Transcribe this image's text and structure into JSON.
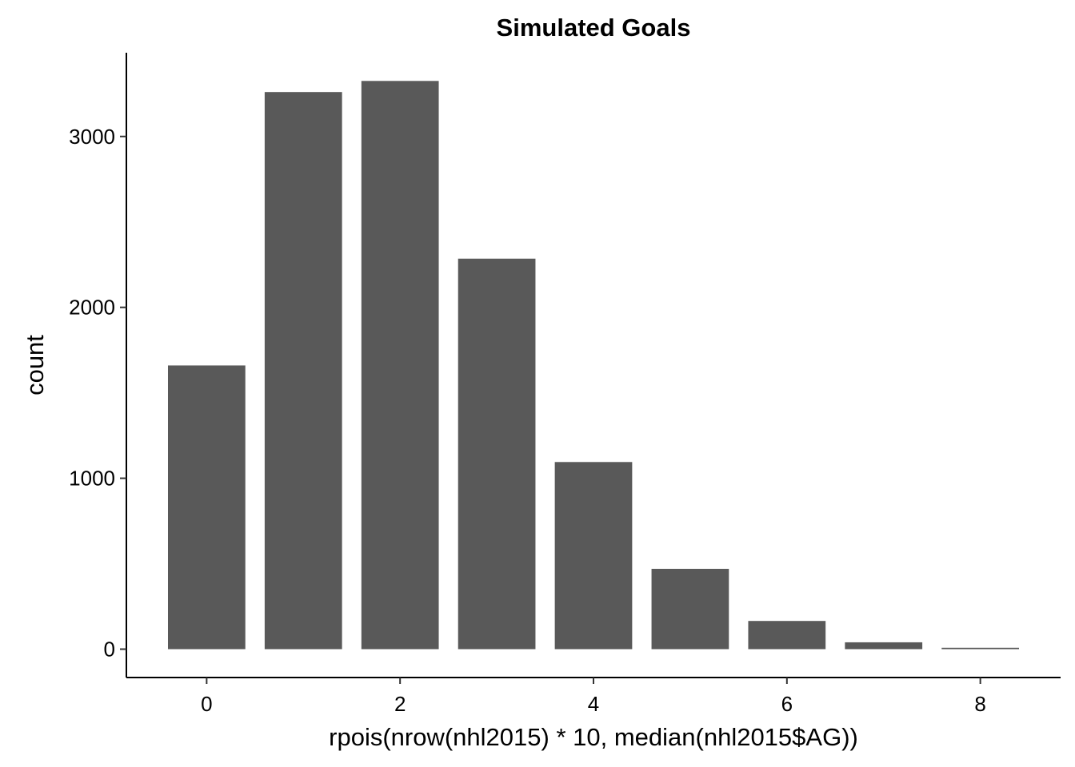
{
  "chart_data": {
    "type": "bar",
    "title": "Simulated Goals",
    "xlabel": "rpois(nrow(nhl2015) * 10, median(nhl2015$AG))",
    "ylabel": "count",
    "x": [
      0,
      1,
      2,
      3,
      4,
      5,
      6,
      7,
      8
    ],
    "values": [
      1660,
      3260,
      3325,
      2285,
      1095,
      470,
      165,
      40,
      8
    ],
    "xlim": [
      -0.83,
      8.83
    ],
    "ylim": [
      -166,
      3490
    ],
    "x_ticks": [
      "0",
      "2",
      "4",
      "6",
      "8"
    ],
    "y_ticks": [
      "0",
      "1000",
      "2000",
      "3000"
    ],
    "bar_color": "#595959",
    "grid": false,
    "legend": "none"
  }
}
